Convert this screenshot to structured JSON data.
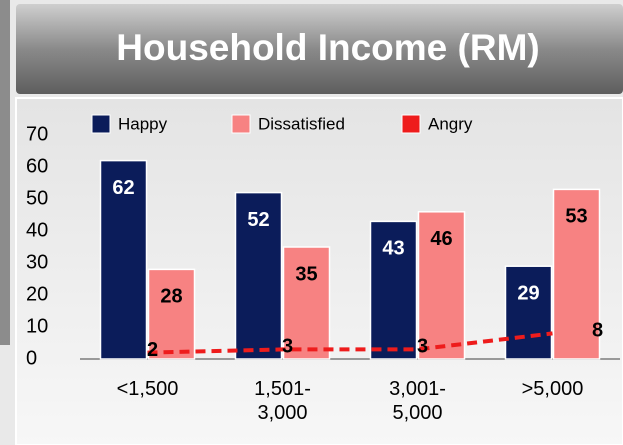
{
  "chart_data": {
    "type": "bar",
    "title": "Household Income (RM)",
    "categories": [
      "<1,500",
      "1,501-\n3,000",
      "3,001-\n5,000",
      ">5,000"
    ],
    "series": [
      {
        "name": "Happy",
        "color": "#0b1c5a",
        "values": [
          62,
          52,
          43,
          29
        ]
      },
      {
        "name": "Dissatisfied",
        "color": "#f78282",
        "values": [
          28,
          35,
          46,
          53
        ]
      },
      {
        "name": "Angry",
        "color": "#ee1c1c",
        "type": "line",
        "values": [
          2,
          3,
          3,
          8
        ]
      }
    ],
    "ylim": [
      0,
      70
    ],
    "yticks": [
      0,
      10,
      20,
      30,
      40,
      50,
      60,
      70
    ],
    "legend": "top"
  }
}
